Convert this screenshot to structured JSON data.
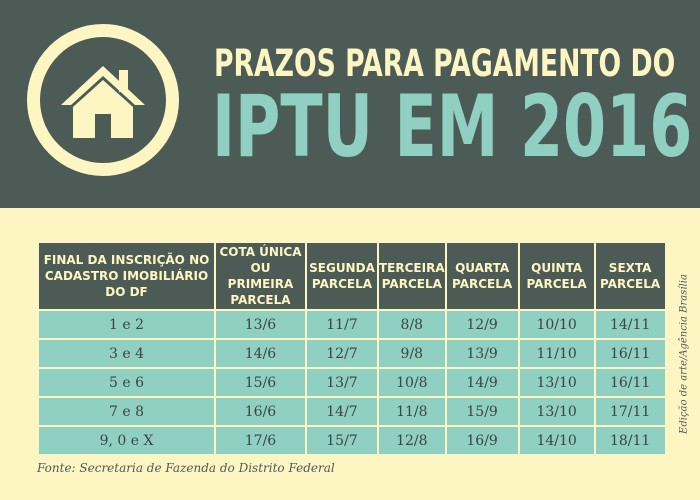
{
  "header": {
    "icon": "house-icon",
    "title_line1": "PRAZOS PARA PAGAMENTO DO",
    "title_line2": "IPTU EM 2016"
  },
  "table": {
    "headers": [
      "FINAL DA INSCRIÇÃO NO CADASTRO IMOBILIÁRIO DO DF",
      "COTA ÚNICA OU PRIMEIRA PARCELA",
      "SEGUNDA PARCELA",
      "TERCEIRA PARCELA",
      "QUARTA PARCELA",
      "QUINTA PARCELA",
      "SEXTA PARCELA"
    ],
    "rows": [
      [
        "1 e 2",
        "13/6",
        "11/7",
        "8/8",
        "12/9",
        "10/10",
        "14/11"
      ],
      [
        "3 e 4",
        "14/6",
        "12/7",
        "9/8",
        "13/9",
        "11/10",
        "16/11"
      ],
      [
        "5 e 6",
        "15/6",
        "13/7",
        "10/8",
        "14/9",
        "13/10",
        "16/11"
      ],
      [
        "7 e 8",
        "16/6",
        "14/7",
        "11/8",
        "15/9",
        "13/10",
        "17/11"
      ],
      [
        "9, 0 e X",
        "17/6",
        "15/7",
        "12/8",
        "16/9",
        "14/10",
        "18/11"
      ]
    ]
  },
  "credit": "Edição de arte/Agência Brasília",
  "source": "Fonte: Secretaria de Fazenda do Distrito Federal",
  "colors": {
    "header_bg": "#4d5b57",
    "page_bg": "#fdf6c3",
    "accent_teal": "#8fd0c2"
  }
}
